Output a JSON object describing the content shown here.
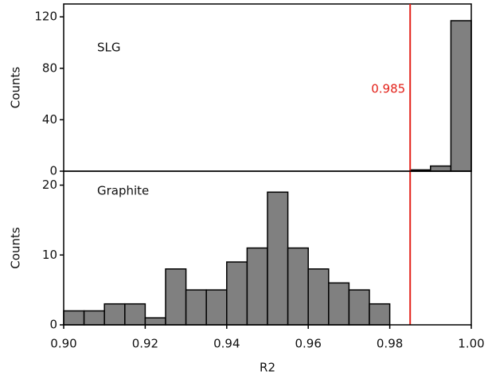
{
  "chart_data": [
    {
      "type": "histogram",
      "label": "SLG",
      "ylabel": "Counts",
      "color": "#808080",
      "bins": [
        0.9,
        0.905,
        0.91,
        0.915,
        0.92,
        0.925,
        0.93,
        0.935,
        0.94,
        0.945,
        0.95,
        0.955,
        0.96,
        0.965,
        0.97,
        0.975,
        0.98,
        0.985,
        0.99,
        0.995,
        1.0
      ],
      "counts": [
        0,
        0,
        0,
        0,
        0,
        0,
        0,
        0,
        0,
        0,
        0,
        0,
        0,
        0,
        0,
        0,
        0,
        1,
        4,
        117
      ],
      "xlim": [
        0.9,
        1.0
      ],
      "ylim": [
        0,
        130
      ],
      "yticks": [
        0,
        40,
        80,
        120
      ],
      "vline": {
        "x": 0.985,
        "label": "0.985",
        "color": "#e32119"
      }
    },
    {
      "type": "histogram",
      "label": "Graphite",
      "ylabel": "Counts",
      "xlabel": "R2",
      "color": "#808080",
      "bins": [
        0.9,
        0.905,
        0.91,
        0.915,
        0.92,
        0.925,
        0.93,
        0.935,
        0.94,
        0.945,
        0.95,
        0.955,
        0.96,
        0.965,
        0.97,
        0.975,
        0.98,
        0.985,
        0.99,
        0.995,
        1.0
      ],
      "counts": [
        2,
        2,
        3,
        3,
        1,
        8,
        5,
        5,
        9,
        11,
        19,
        11,
        8,
        6,
        5,
        3,
        0,
        0,
        0,
        0
      ],
      "xlim": [
        0.9,
        1.0
      ],
      "ylim": [
        0,
        22
      ],
      "yticks": [
        0,
        10,
        20
      ],
      "xticks": [
        {
          "value": 0.9,
          "label": "0.90"
        },
        0.92,
        0.94,
        0.96,
        0.98,
        {
          "value": 1.0,
          "label": "1.00"
        }
      ]
    }
  ]
}
